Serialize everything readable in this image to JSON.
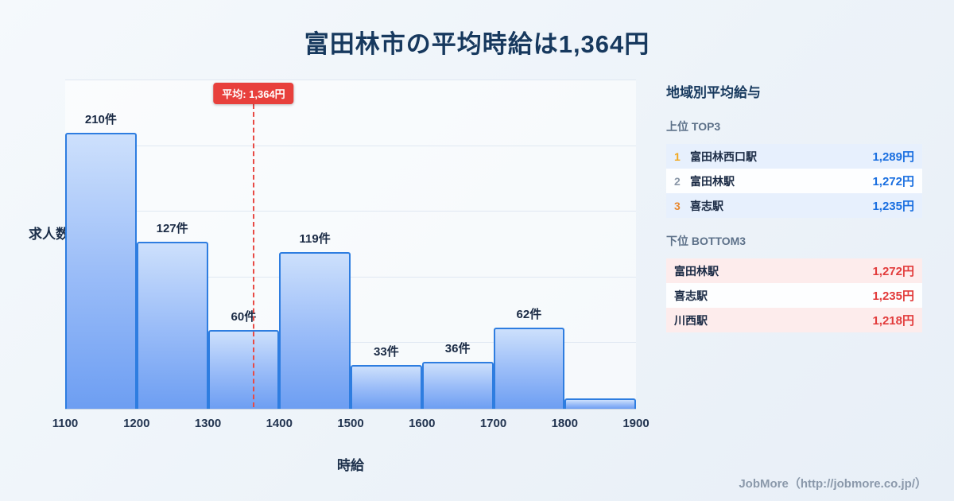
{
  "title": "富田林市の平均時給は1,364円",
  "chart_data": {
    "type": "bar",
    "title": "富田林市の平均時給は1,364円",
    "xlabel": "時給",
    "ylabel": "求人数",
    "xlim": [
      1100,
      1900
    ],
    "ylim": [
      0,
      250
    ],
    "grid_step": 50,
    "x_ticks": [
      1100,
      1200,
      1300,
      1400,
      1500,
      1600,
      1700,
      1800,
      1900
    ],
    "bins": [
      {
        "range": [
          1100,
          1200
        ],
        "count": 210,
        "label": "210件"
      },
      {
        "range": [
          1200,
          1300
        ],
        "count": 127,
        "label": "127件"
      },
      {
        "range": [
          1300,
          1400
        ],
        "count": 60,
        "label": "60件"
      },
      {
        "range": [
          1400,
          1500
        ],
        "count": 119,
        "label": "119件"
      },
      {
        "range": [
          1500,
          1600
        ],
        "count": 33,
        "label": "33件"
      },
      {
        "range": [
          1600,
          1700
        ],
        "count": 36,
        "label": "36件"
      },
      {
        "range": [
          1700,
          1800
        ],
        "count": 62,
        "label": "62件"
      },
      {
        "range": [
          1800,
          1900
        ],
        "count": 8,
        "label": ""
      }
    ],
    "mean_line": {
      "x": 1364,
      "label": "平均: 1,364円",
      "color": "#e8403c"
    },
    "legend": null,
    "grid": true
  },
  "sidebar": {
    "title": "地域別平均給与",
    "top": {
      "heading": "上位 TOP3",
      "rows": [
        {
          "rank": "1",
          "name": "富田林西口駅",
          "value": "1,289円"
        },
        {
          "rank": "2",
          "name": "富田林駅",
          "value": "1,272円"
        },
        {
          "rank": "3",
          "name": "喜志駅",
          "value": "1,235円"
        }
      ]
    },
    "bottom": {
      "heading": "下位 BOTTOM3",
      "rows": [
        {
          "name": "富田林駅",
          "value": "1,272円"
        },
        {
          "name": "喜志駅",
          "value": "1,235円"
        },
        {
          "name": "川西駅",
          "value": "1,218円"
        }
      ]
    }
  },
  "footer": {
    "credit": "JobMore（http://jobmore.co.jp/）"
  },
  "colors": {
    "title_navy": "#17395e",
    "bar_border_blue": "#2e7de0",
    "bar_fill_top": "#cde0fc",
    "bar_fill_bottom": "#6d9ef2",
    "mean_red": "#e8403c",
    "value_blue": "#1a6fe0",
    "value_red": "#e23b3b",
    "rank_gold": "#f2a71b",
    "rank_silver": "#8a97a8",
    "rank_bronze": "#e8882e"
  }
}
